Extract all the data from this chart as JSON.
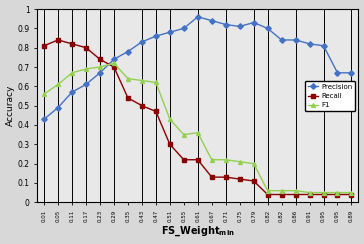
{
  "x_labels": [
    "0.01",
    "0.05",
    "0.11",
    "0.17",
    "0.23",
    "0.29",
    "0.35",
    "0.43",
    "0.47",
    "0.51",
    "0.55",
    "0.61",
    "0.67",
    "0.71",
    "0.75",
    "0.79",
    "0.82",
    "0.82",
    "0.86",
    "0.91",
    "0.95",
    "0.95",
    "0.89"
  ],
  "precision": [
    0.43,
    0.49,
    0.57,
    0.61,
    0.67,
    0.74,
    0.78,
    0.83,
    0.86,
    0.88,
    0.9,
    0.96,
    0.94,
    0.92,
    0.91,
    0.93,
    0.9,
    0.84,
    0.84,
    0.82,
    0.81,
    0.67,
    0.67
  ],
  "recall": [
    0.81,
    0.84,
    0.82,
    0.8,
    0.74,
    0.7,
    0.54,
    0.5,
    0.47,
    0.3,
    0.22,
    0.22,
    0.13,
    0.13,
    0.12,
    0.11,
    0.04,
    0.04,
    0.04,
    0.04,
    0.04,
    0.04,
    0.04
  ],
  "f1": [
    0.56,
    0.61,
    0.67,
    0.69,
    0.7,
    0.72,
    0.64,
    0.63,
    0.62,
    0.43,
    0.35,
    0.36,
    0.22,
    0.22,
    0.21,
    0.2,
    0.06,
    0.06,
    0.06,
    0.05,
    0.05,
    0.05,
    0.05
  ],
  "vline_indices": [
    0,
    1,
    2,
    3,
    4,
    5,
    7,
    8,
    9,
    11,
    13,
    15,
    16,
    18,
    20,
    22
  ],
  "precision_color": "#4472C4",
  "recall_color": "#8B0000",
  "f1_color": "#92D050",
  "vline_color": "black",
  "ylabel": "Accuracy",
  "ylim": [
    0,
    1.0
  ],
  "yticks": [
    0,
    0.1,
    0.2,
    0.3,
    0.4,
    0.5,
    0.6,
    0.7,
    0.8,
    0.9,
    1
  ],
  "legend_labels": [
    "Precision",
    "Recall",
    "F1"
  ],
  "bg_color": "#E8E8E8",
  "fig_bg_color": "#D8D8D8"
}
